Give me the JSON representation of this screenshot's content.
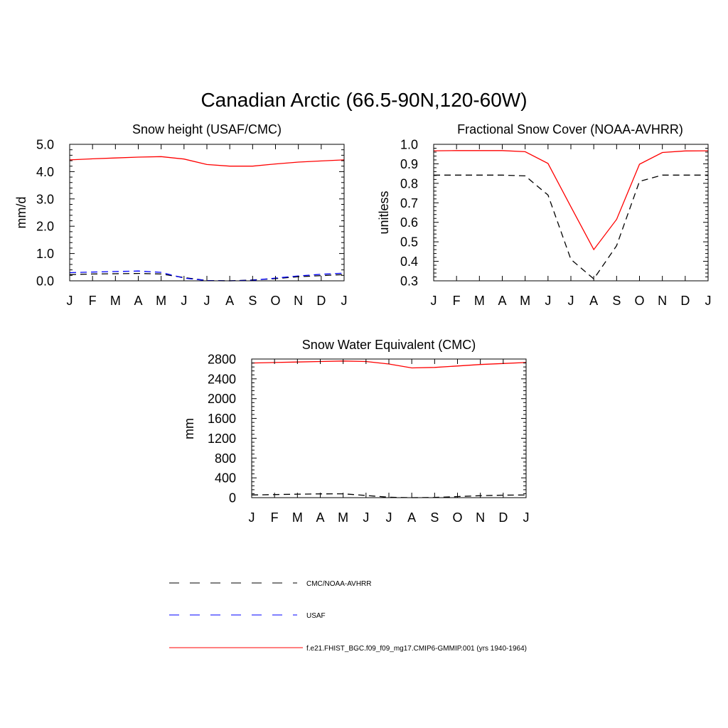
{
  "figure": {
    "title": "Canadian Arctic (66.5-90N,120-60W)"
  },
  "colors": {
    "cmc": "#000000",
    "usaf": "#0000ff",
    "model": "#ff0000",
    "axes": "#000000"
  },
  "legend": [
    {
      "label": "CMC/NOAA-AVHRR",
      "style": "dashed",
      "color": "#000000"
    },
    {
      "label": "USAF",
      "style": "dashed",
      "color": "#0000ff"
    },
    {
      "label": "f.e21.FHIST_BGC.f09_f09_mg17.CMIP6-GMMIP.001 (yrs 1940-1964)",
      "style": "solid",
      "color": "#ff0000"
    }
  ],
  "chart_data": [
    {
      "type": "line",
      "title": "Snow height (USAF/CMC)",
      "xlabel": "",
      "ylabel": "mm/d",
      "categories": [
        "J",
        "F",
        "M",
        "A",
        "M",
        "J",
        "J",
        "A",
        "S",
        "O",
        "N",
        "D",
        "J"
      ],
      "ylim": [
        0,
        5
      ],
      "yticks": [
        0,
        1,
        2,
        3,
        4,
        5
      ],
      "ytick_labels": [
        "0.0",
        "1.0",
        "2.0",
        "3.0",
        "4.0",
        "5.0"
      ],
      "series": [
        {
          "name": "CMC/NOAA-AVHRR",
          "style": "dashed",
          "color": "#000000",
          "values": [
            0.23,
            0.25,
            0.26,
            0.27,
            0.25,
            0.12,
            0.01,
            0.0,
            0.03,
            0.08,
            0.15,
            0.19,
            0.23
          ]
        },
        {
          "name": "USAF",
          "style": "dashed",
          "color": "#0000ff",
          "values": [
            0.3,
            0.32,
            0.34,
            0.36,
            0.31,
            0.1,
            0.01,
            0.0,
            0.02,
            0.1,
            0.18,
            0.24,
            0.28
          ]
        },
        {
          "name": "f.e21.FHIST_BGC.f09_f09_mg17.CMIP6-GMMIP.001 (yrs 1940-1964)",
          "style": "solid",
          "color": "#ff0000",
          "values": [
            4.43,
            4.47,
            4.5,
            4.53,
            4.55,
            4.46,
            4.26,
            4.2,
            4.2,
            4.28,
            4.35,
            4.39,
            4.43
          ]
        }
      ]
    },
    {
      "type": "line",
      "title": "Fractional Snow Cover (NOAA-AVHRR)",
      "xlabel": "",
      "ylabel": "unitless",
      "categories": [
        "J",
        "F",
        "M",
        "A",
        "M",
        "J",
        "J",
        "A",
        "S",
        "O",
        "N",
        "D",
        "J"
      ],
      "ylim": [
        0.3,
        1.0
      ],
      "yticks": [
        0.3,
        0.4,
        0.5,
        0.6,
        0.7,
        0.8,
        0.9,
        1.0
      ],
      "ytick_labels": [
        "0.3",
        "0.4",
        "0.5",
        "0.6",
        "0.7",
        "0.8",
        "0.9",
        "1.0"
      ],
      "series": [
        {
          "name": "CMC/NOAA-AVHRR",
          "style": "dashed",
          "color": "#000000",
          "values": [
            0.842,
            0.842,
            0.842,
            0.842,
            0.838,
            0.74,
            0.41,
            0.31,
            0.48,
            0.81,
            0.842,
            0.842,
            0.842
          ]
        },
        {
          "name": "f.e21.FHIST_BGC.f09_f09_mg17.CMIP6-GMMIP.001 (yrs 1940-1964)",
          "style": "solid",
          "color": "#ff0000",
          "values": [
            0.967,
            0.968,
            0.968,
            0.968,
            0.962,
            0.902,
            0.68,
            0.46,
            0.615,
            0.898,
            0.958,
            0.966,
            0.967
          ]
        }
      ]
    },
    {
      "type": "line",
      "title": "Snow Water Equivalent (CMC)",
      "xlabel": "",
      "ylabel": "mm",
      "categories": [
        "J",
        "F",
        "M",
        "A",
        "M",
        "J",
        "J",
        "A",
        "S",
        "O",
        "N",
        "D",
        "J"
      ],
      "ylim": [
        0,
        2800
      ],
      "yticks": [
        0,
        400,
        800,
        1200,
        1600,
        2000,
        2400,
        2800
      ],
      "ytick_labels": [
        "0",
        "400",
        "800",
        "1200",
        "1600",
        "2000",
        "2400",
        "2800"
      ],
      "series": [
        {
          "name": "CMC/NOAA-AVHRR",
          "style": "dashed",
          "color": "#000000",
          "values": [
            55,
            62,
            70,
            76,
            78,
            45,
            8,
            0,
            5,
            22,
            40,
            50,
            55
          ]
        },
        {
          "name": "f.e21.FHIST_BGC.f09_f09_mg17.CMIP6-GMMIP.001 (yrs 1940-1964)",
          "style": "solid",
          "color": "#ff0000",
          "values": [
            2720,
            2730,
            2740,
            2750,
            2760,
            2750,
            2700,
            2620,
            2630,
            2660,
            2690,
            2710,
            2730
          ]
        }
      ]
    }
  ]
}
